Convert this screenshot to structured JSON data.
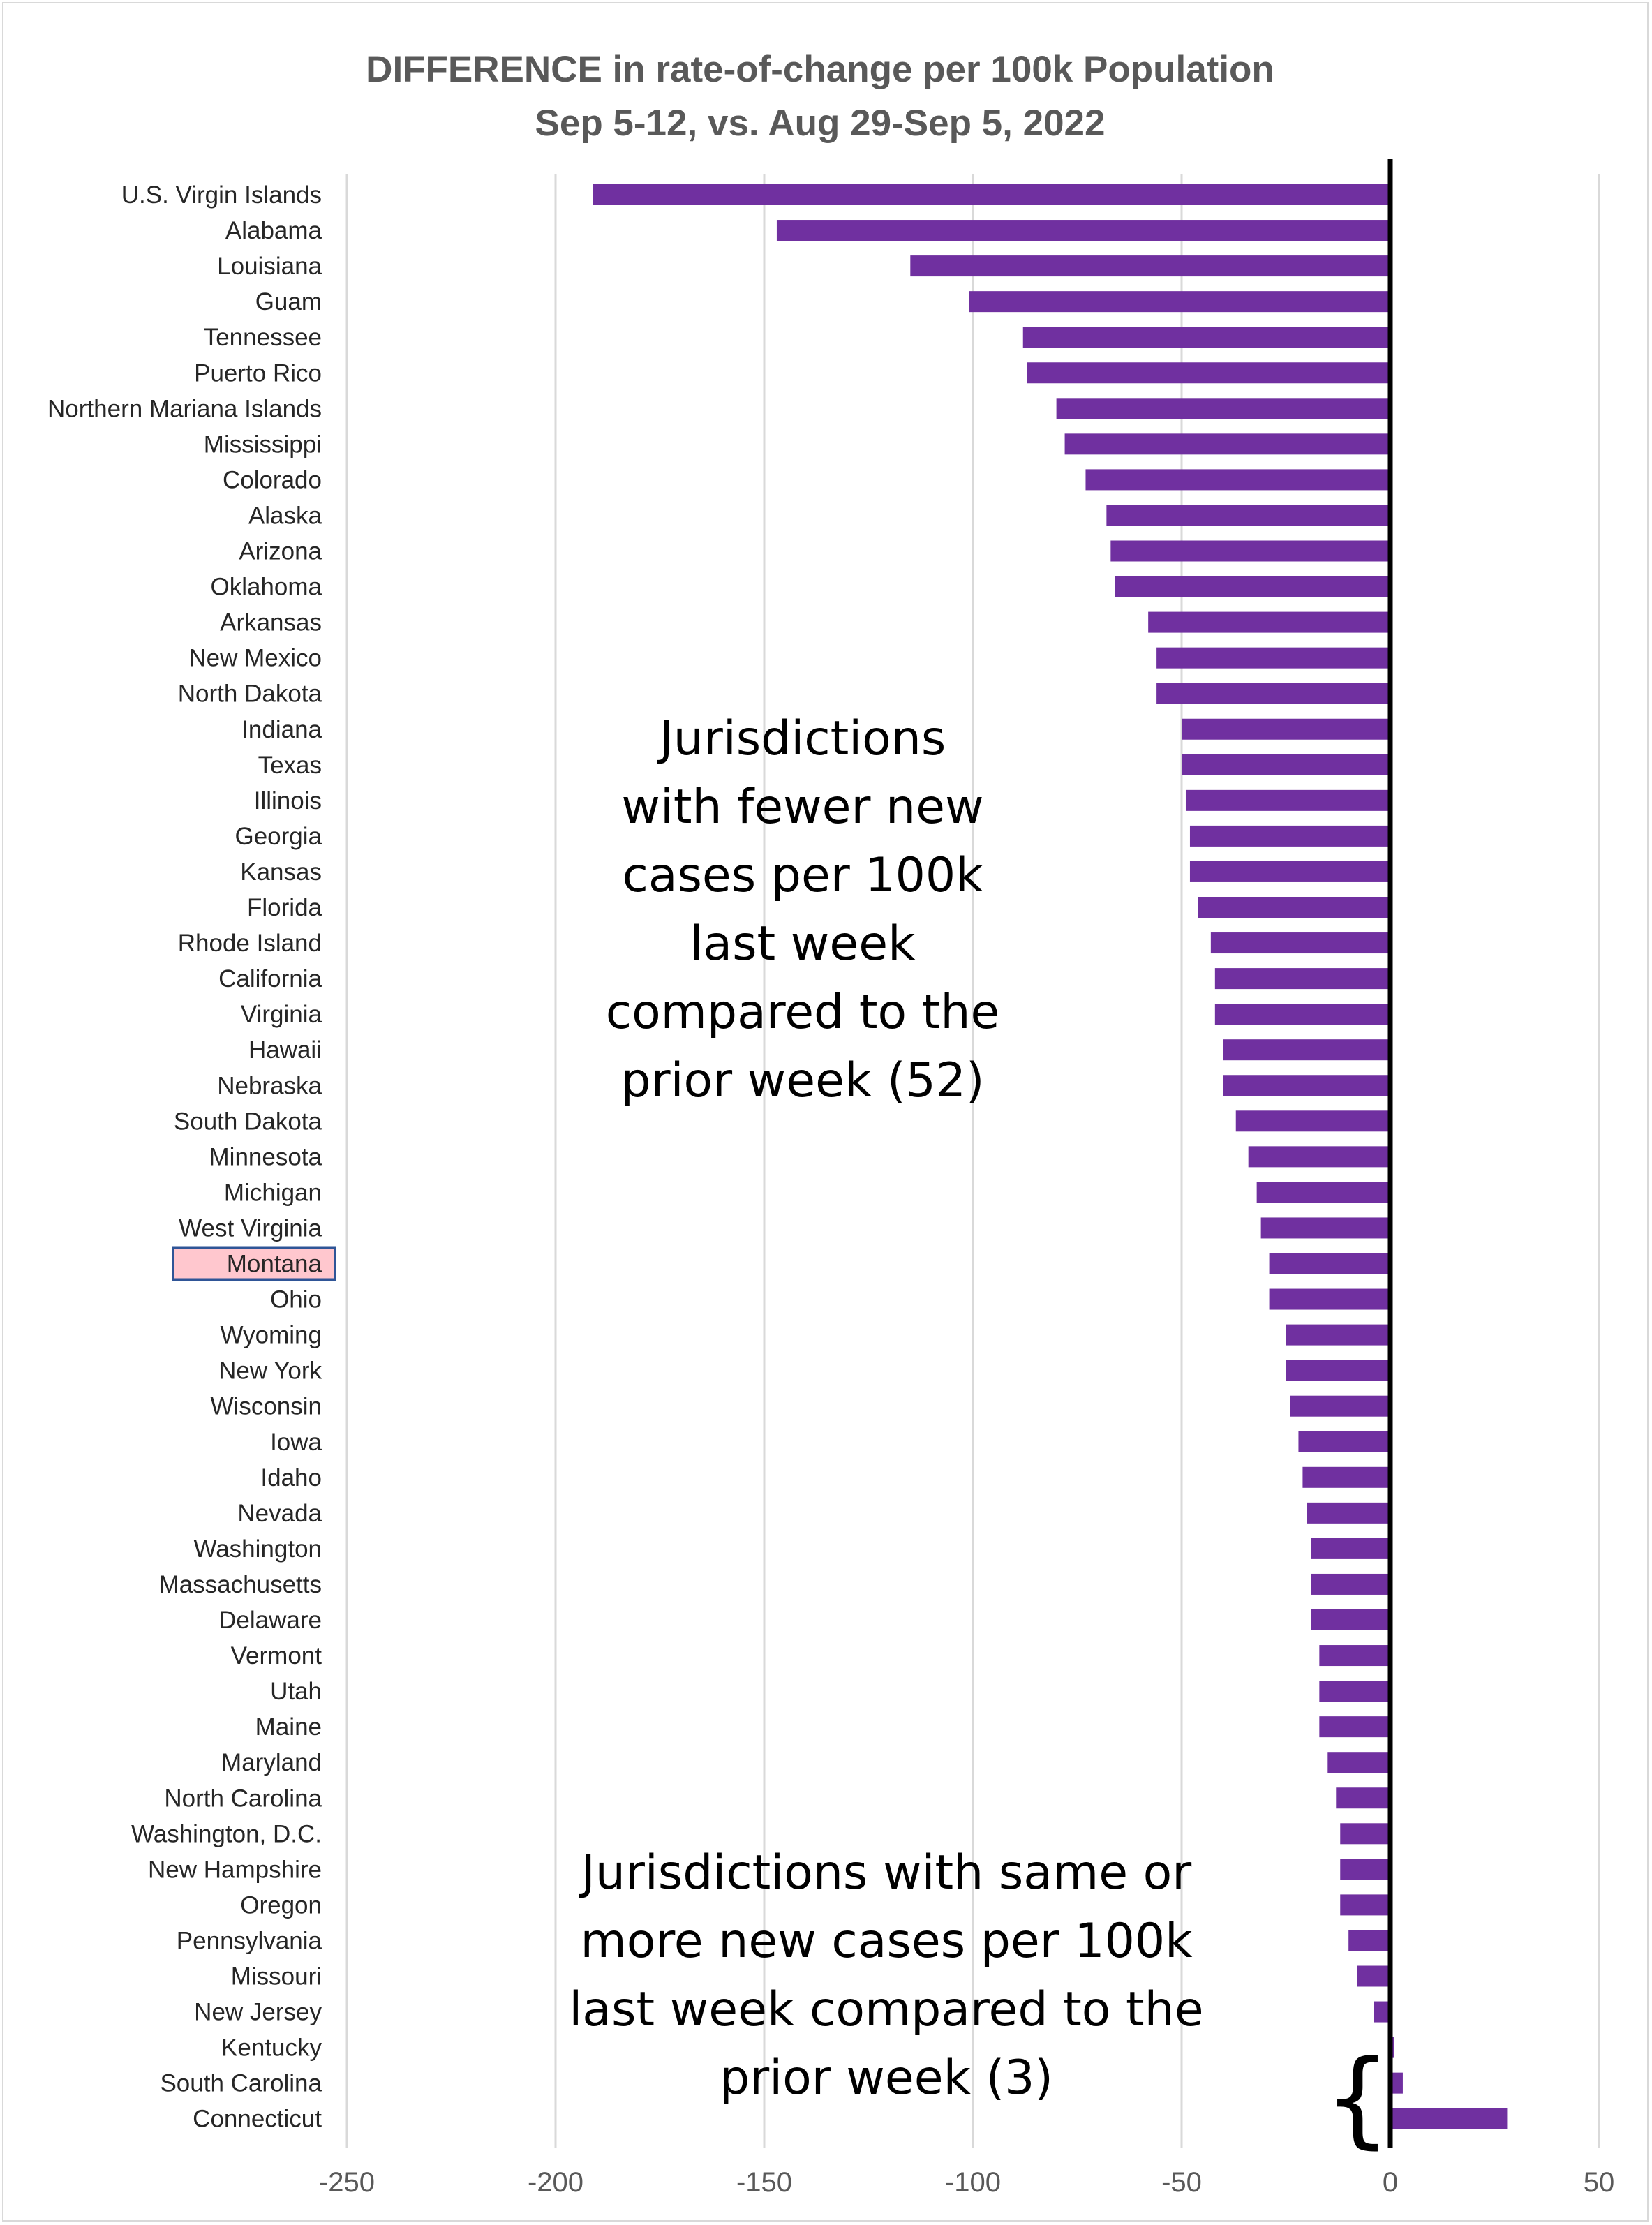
{
  "chart_data": {
    "type": "bar",
    "orientation": "horizontal",
    "title": "DIFFERENCE in rate-of-change per 100k Population",
    "subtitle": "Sep 5-12, vs. Aug 29-Sep 5, 2022",
    "xlabel": "",
    "ylabel": "",
    "xlim": [
      -250,
      50
    ],
    "xticks": [
      -250,
      -200,
      -150,
      -100,
      -50,
      0,
      50
    ],
    "grid": true,
    "bar_color": "#7030a0",
    "zero_line_color": "#000000",
    "highlight_color": "#ffc7ce",
    "highlight_border_color": "#2f5597",
    "highlighted_category": "Montana",
    "categories": [
      "U.S. Virgin Islands",
      "Alabama",
      "Louisiana",
      "Guam",
      "Tennessee",
      "Puerto Rico",
      "Northern Mariana Islands",
      "Mississippi",
      "Colorado",
      "Alaska",
      "Arizona",
      "Oklahoma",
      "Arkansas",
      "New Mexico",
      "North Dakota",
      "Indiana",
      "Texas",
      "Illinois",
      "Georgia",
      "Kansas",
      "Florida",
      "Rhode Island",
      "California",
      "Virginia",
      "Hawaii",
      "Nebraska",
      "South Dakota",
      "Minnesota",
      "Michigan",
      "West Virginia",
      "Montana",
      "Ohio",
      "Wyoming",
      "New York",
      "Wisconsin",
      "Iowa",
      "Idaho",
      "Nevada",
      "Washington",
      "Massachusetts",
      "Delaware",
      "Vermont",
      "Utah",
      "Maine",
      "Maryland",
      "North Carolina",
      "Washington, D.C.",
      "New Hampshire",
      "Oregon",
      "Pennsylvania",
      "Missouri",
      "New Jersey",
      "Kentucky",
      "South Carolina",
      "Connecticut"
    ],
    "values": [
      -191,
      -147,
      -115,
      -101,
      -88,
      -87,
      -80,
      -78,
      -73,
      -68,
      -67,
      -66,
      -58,
      -56,
      -56,
      -50,
      -50,
      -49,
      -48,
      -48,
      -46,
      -43,
      -42,
      -42,
      -40,
      -40,
      -37,
      -34,
      -32,
      -31,
      -29,
      -29,
      -25,
      -25,
      -24,
      -22,
      -21,
      -20,
      -19,
      -19,
      -19,
      -17,
      -17,
      -17,
      -15,
      -13,
      -12,
      -12,
      -12,
      -10,
      -8,
      -4,
      1,
      3,
      28
    ]
  },
  "annotations": {
    "fewer": "Jurisdictions\nwith fewer new\ncases per 100k\nlast week\ncompared to the\nprior week (52)",
    "more": "Jurisdictions with same or\nmore new cases per 100k\nlast week compared to the\nprior week (3)",
    "brace": "{"
  }
}
